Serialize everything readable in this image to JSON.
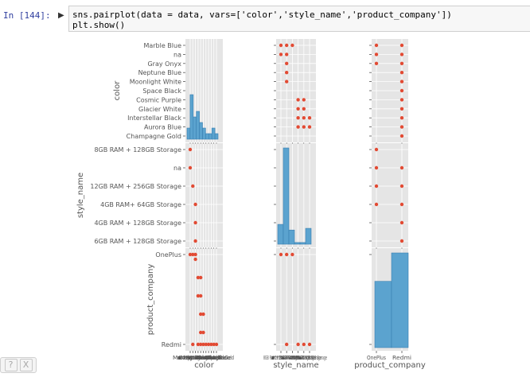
{
  "cell": {
    "prompt": "In [144]:",
    "run_glyph": "▶",
    "code_lines": [
      "sns.pairplot(data = data, vars=['color','style_name','product_company'])",
      "plt.show()"
    ]
  },
  "help_widget": {
    "help_label": "?",
    "close_label": "X"
  },
  "chart_data": {
    "type": "scatter",
    "kind": "pairplot",
    "variables": [
      "color",
      "style_name",
      "product_company"
    ],
    "axis_labels": {
      "color": "color",
      "style_name": "style_name",
      "product_company": "product_company"
    },
    "categories": {
      "color": [
        "Marble Blue",
        "na",
        "Gray Onyx",
        "Neptune Blue",
        "Moonlight White",
        "Space Black",
        "Cosmic Purple",
        "Glacier White",
        "Interstellar Black",
        "Aurora Blue",
        "Champagne Gold"
      ],
      "style_name": [
        "8GB RAM + 128GB Storage",
        "na",
        "12GB RAM + 256GB Storage",
        "4GB RAM+ 64GB Storage",
        "4GB RAM + 128GB Storage",
        "6GB RAM + 128GB Storage"
      ],
      "product_company": [
        "OnePlus",
        "Redmi"
      ]
    },
    "diagonal_histograms": {
      "color": [
        2,
        8,
        4,
        5,
        3,
        2,
        1,
        1,
        2,
        1
      ],
      "style_name": [
        3.5,
        17,
        2.5,
        0.3,
        0.3,
        2.8
      ],
      "product_company": [
        0.7,
        1.0
      ]
    },
    "scatter_points": {
      "color_vs_style_name": [
        [
          0,
          0
        ],
        [
          0,
          1
        ],
        [
          1,
          2
        ],
        [
          2,
          3
        ],
        [
          2,
          4
        ],
        [
          2,
          5
        ],
        [
          2,
          6
        ],
        [
          3,
          7
        ],
        [
          3,
          8
        ],
        [
          4,
          7
        ],
        [
          4,
          8
        ],
        [
          4,
          9
        ],
        [
          4,
          10
        ],
        [
          5,
          10
        ],
        [
          5,
          9
        ]
      ],
      "color_vs_product_company": [
        [
          0,
          0
        ],
        [
          1,
          0
        ],
        [
          1,
          1
        ],
        [
          2,
          0
        ],
        [
          3,
          1
        ],
        [
          4,
          1
        ],
        [
          5,
          1
        ],
        [
          6,
          1
        ],
        [
          7,
          1
        ],
        [
          8,
          1
        ],
        [
          9,
          1
        ],
        [
          10,
          1
        ]
      ],
      "style_name_vs_color": [
        [
          0,
          0
        ],
        [
          0,
          1
        ],
        [
          1,
          0
        ],
        [
          1,
          1
        ],
        [
          1,
          2
        ],
        [
          1,
          3
        ],
        [
          1,
          4
        ],
        [
          2,
          0
        ],
        [
          3,
          6
        ],
        [
          3,
          7
        ],
        [
          3,
          8
        ],
        [
          3,
          9
        ],
        [
          4,
          6
        ],
        [
          4,
          7
        ],
        [
          4,
          8
        ],
        [
          4,
          9
        ],
        [
          5,
          8
        ],
        [
          5,
          9
        ]
      ],
      "style_name_vs_product_company": [
        [
          0,
          0
        ],
        [
          1,
          0
        ],
        [
          1,
          1
        ],
        [
          2,
          0
        ],
        [
          3,
          1
        ],
        [
          4,
          1
        ],
        [
          5,
          1
        ]
      ],
      "product_company_vs_color": [
        [
          0,
          0
        ],
        [
          0,
          1
        ],
        [
          0,
          2
        ],
        [
          1,
          0
        ],
        [
          1,
          1
        ],
        [
          1,
          2
        ],
        [
          1,
          3
        ],
        [
          1,
          4
        ],
        [
          1,
          5
        ],
        [
          1,
          6
        ],
        [
          1,
          7
        ],
        [
          1,
          8
        ],
        [
          1,
          9
        ],
        [
          1,
          10
        ]
      ],
      "product_company_vs_style_name": [
        [
          0,
          0
        ],
        [
          0,
          1
        ],
        [
          0,
          2
        ],
        [
          0,
          3
        ],
        [
          1,
          1
        ],
        [
          1,
          2
        ],
        [
          1,
          3
        ],
        [
          1,
          4
        ],
        [
          1,
          5
        ]
      ]
    },
    "colors": {
      "background": "#e5e5e5",
      "grid": "#ffffff",
      "marker": "#e24a33",
      "hist": "#5ba3cf",
      "hist_edge": "#3a7fb0"
    },
    "grid": true
  }
}
